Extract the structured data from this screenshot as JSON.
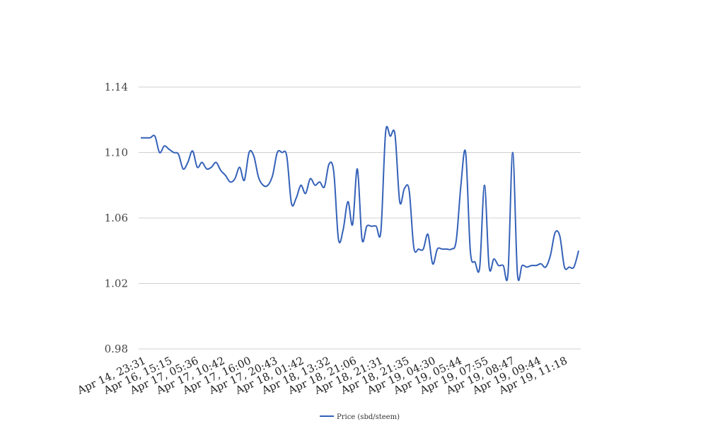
{
  "chart_data": {
    "type": "line",
    "ylim": [
      0.98,
      1.14
    ],
    "yticks": [
      0.98,
      1.02,
      1.06,
      1.1,
      1.14
    ],
    "ytick_labels": [
      "0.98",
      "1.02",
      "1.06",
      "1.10",
      "1.14"
    ],
    "xtick_labels": [
      "Apr 14, 23:31",
      "Apr 16, 15:15",
      "Apr 17, 05:36",
      "Apr 17, 10:42",
      "Apr 17, 16:00",
      "Apr 17, 20:43",
      "Apr 18, 01:42",
      "Apr 18, 13:32",
      "Apr 18, 21:06",
      "Apr 18, 21:31",
      "Apr 18, 21:35",
      "Apr 19, 04:30",
      "Apr 19, 05:44",
      "Apr 19, 07:55",
      "Apr 19, 08:47",
      "Apr 19, 09:44",
      "Apr 19, 11:18"
    ],
    "grid": true,
    "legend_position": "bottom",
    "series": [
      {
        "name": "Price (sbd/steem)",
        "color": "#3461b8",
        "values": [
          1.109,
          1.109,
          1.109,
          1.11,
          1.1,
          1.104,
          1.102,
          1.1,
          1.099,
          1.09,
          1.094,
          1.101,
          1.091,
          1.094,
          1.09,
          1.091,
          1.094,
          1.089,
          1.086,
          1.082,
          1.084,
          1.091,
          1.083,
          1.1,
          1.098,
          1.085,
          1.08,
          1.08,
          1.086,
          1.1,
          1.1,
          1.098,
          1.069,
          1.072,
          1.08,
          1.075,
          1.084,
          1.08,
          1.082,
          1.079,
          1.093,
          1.088,
          1.047,
          1.053,
          1.07,
          1.056,
          1.09,
          1.047,
          1.055,
          1.055,
          1.055,
          1.052,
          1.112,
          1.11,
          1.111,
          1.07,
          1.078,
          1.077,
          1.042,
          1.041,
          1.041,
          1.05,
          1.032,
          1.041,
          1.041,
          1.041,
          1.041,
          1.046,
          1.08,
          1.1,
          1.04,
          1.033,
          1.03,
          1.08,
          1.03,
          1.035,
          1.031,
          1.031,
          1.026,
          1.1,
          1.026,
          1.031,
          1.03,
          1.031,
          1.031,
          1.032,
          1.03,
          1.037,
          1.051,
          1.049,
          1.03,
          1.03,
          1.03,
          1.04
        ]
      }
    ]
  }
}
